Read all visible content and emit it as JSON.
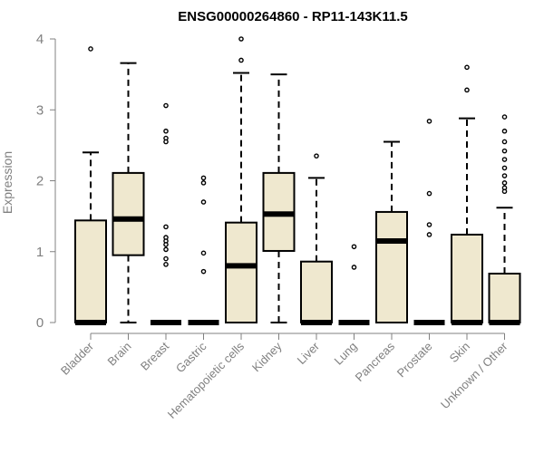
{
  "chart_data": {
    "type": "boxplot",
    "title": "ENSG00000264860 - RP11-143K11.5",
    "xlabel": "",
    "ylabel": "Expression",
    "ylim": [
      0,
      4
    ],
    "yticks": [
      0,
      1,
      2,
      3,
      4
    ],
    "grid": false,
    "legend": "none",
    "categories": [
      "Bladder",
      "Brain",
      "Breast",
      "Gastric",
      "Hematopoietic cells",
      "Kidney",
      "Liver",
      "Lung",
      "Pancreas",
      "Prostate",
      "Skin",
      "Unknown / Other"
    ],
    "boxes": [
      {
        "q1": 0,
        "median": 0,
        "q3": 1.44,
        "whisker_low": 0,
        "whisker_high": 2.4,
        "outliers": [
          3.86
        ]
      },
      {
        "q1": 0.95,
        "median": 1.46,
        "q3": 2.11,
        "whisker_low": 0,
        "whisker_high": 3.66,
        "outliers": []
      },
      {
        "q1": 0,
        "median": 0,
        "q3": 0,
        "whisker_low": 0,
        "whisker_high": 0,
        "outliers": [
          3.06,
          2.7,
          2.6,
          2.55,
          1.35,
          1.2,
          1.15,
          1.1,
          1.03,
          0.9,
          0.82
        ]
      },
      {
        "q1": 0,
        "median": 0,
        "q3": 0,
        "whisker_low": 0,
        "whisker_high": 0,
        "outliers": [
          2.04,
          1.97,
          1.7,
          0.98,
          0.72
        ]
      },
      {
        "q1": 0,
        "median": 0.8,
        "q3": 1.41,
        "whisker_low": 0,
        "whisker_high": 3.52,
        "outliers": [
          4.0,
          3.7
        ]
      },
      {
        "q1": 1.01,
        "median": 1.53,
        "q3": 2.11,
        "whisker_low": 0,
        "whisker_high": 3.5,
        "outliers": []
      },
      {
        "q1": 0,
        "median": 0,
        "q3": 0.86,
        "whisker_low": 0,
        "whisker_high": 2.04,
        "outliers": [
          2.35
        ]
      },
      {
        "q1": 0,
        "median": 0,
        "q3": 0,
        "whisker_low": 0,
        "whisker_high": 0,
        "outliers": [
          1.07,
          0.78
        ]
      },
      {
        "q1": 0,
        "median": 1.15,
        "q3": 1.56,
        "whisker_low": 0,
        "whisker_high": 2.55,
        "outliers": []
      },
      {
        "q1": 0,
        "median": 0,
        "q3": 0,
        "whisker_low": 0,
        "whisker_high": 0,
        "outliers": [
          2.84,
          1.82,
          1.38,
          1.24
        ]
      },
      {
        "q1": 0,
        "median": 0,
        "q3": 1.24,
        "whisker_low": 0,
        "whisker_high": 2.88,
        "outliers": [
          3.6,
          3.28
        ]
      },
      {
        "q1": 0,
        "median": 0,
        "q3": 0.69,
        "whisker_low": 0,
        "whisker_high": 1.62,
        "outliers": [
          2.9,
          2.7,
          2.55,
          2.42,
          2.3,
          2.18,
          2.07,
          1.97,
          1.9,
          1.85
        ]
      }
    ],
    "colors": {
      "box_fill": "#efe8cf",
      "box_stroke": "#000000",
      "axis": "#808080",
      "axis_text": "#808080"
    }
  }
}
